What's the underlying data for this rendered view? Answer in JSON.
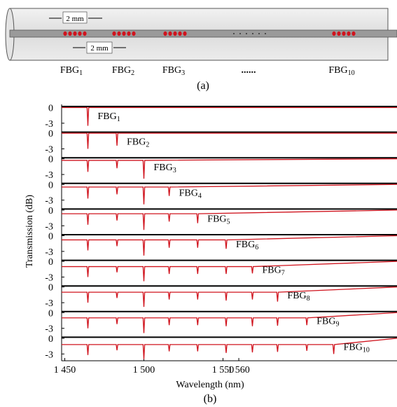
{
  "diagram": {
    "spacing_labels": [
      "2 mm",
      "2 mm"
    ],
    "gratings": [
      {
        "text": "FBG",
        "sub": "1"
      },
      {
        "text": "FBG",
        "sub": "2"
      },
      {
        "text": "FBG",
        "sub": "3"
      },
      {
        "text": "......"
      },
      {
        "text": "FBG",
        "sub": "10"
      }
    ],
    "label": "(a)"
  },
  "chart_data": {
    "type": "line",
    "xlabel": "Wavelength (nm)",
    "ylabel": "Transmission (dB)",
    "label": "(b)",
    "color": "#d0141e",
    "xlim": [
      1448,
      1660
    ],
    "xticks": [
      {
        "value": 1450,
        "label": "1 450"
      },
      {
        "value": 1500,
        "label": "1 500"
      },
      {
        "value": 1550,
        "label": "1 550"
      },
      {
        "value": 1560,
        "label": "1 560"
      }
    ],
    "ylim": [
      -4.3,
      0.6
    ],
    "yticks": [
      0,
      -3
    ],
    "panels": [
      {
        "annotation": {
          "text": "FBG",
          "sub": "1"
        },
        "x": [
          1448,
          1464.1,
          1464.6,
          1465.1,
          1660
        ],
        "values": [
          0,
          0,
          -3.5,
          0,
          0
        ]
      },
      {
        "annotation": {
          "text": "FBG",
          "sub": "2"
        },
        "x": [
          1448,
          1464.1,
          1464.6,
          1465.1,
          1482.5,
          1483,
          1483.5,
          1660
        ],
        "values": [
          0,
          0,
          -3.0,
          0,
          0,
          -2.4,
          0,
          0
        ]
      },
      {
        "annotation": {
          "text": "FBG",
          "sub": "3"
        },
        "x": [
          1448,
          1464.1,
          1464.6,
          1465.1,
          1482.5,
          1483,
          1483.5,
          1499.5,
          1500,
          1500.5,
          1660
        ],
        "values": [
          -0.3,
          -0.3,
          -2.5,
          -0.3,
          -0.3,
          -1.8,
          -0.3,
          -0.3,
          -3.8,
          -0.3,
          0
        ]
      },
      {
        "annotation": {
          "text": "FBG",
          "sub": "4"
        },
        "x": [
          1448,
          1464.1,
          1464.6,
          1465.1,
          1482.5,
          1483,
          1483.5,
          1499.5,
          1500,
          1500.5,
          1515.5,
          1516,
          1516.5,
          1660
        ],
        "values": [
          -0.5,
          -0.5,
          -2.7,
          -0.5,
          -0.5,
          -1.9,
          -0.5,
          -0.5,
          -3.8,
          -0.5,
          -0.5,
          -2.2,
          -0.5,
          0
        ]
      },
      {
        "annotation": {
          "text": "FBG",
          "sub": "5"
        },
        "x": [
          1448,
          1464.1,
          1464.6,
          1465.1,
          1482.5,
          1483,
          1483.5,
          1499.5,
          1500,
          1500.5,
          1515.5,
          1516,
          1516.5,
          1533.5,
          1534,
          1534.5,
          1660
        ],
        "values": [
          -0.7,
          -0.7,
          -2.8,
          -0.7,
          -0.7,
          -2.0,
          -0.7,
          -0.7,
          -3.8,
          -0.7,
          -0.7,
          -2.2,
          -0.7,
          -0.7,
          -2.5,
          -0.7,
          0
        ]
      },
      {
        "annotation": {
          "text": "FBG",
          "sub": "6"
        },
        "x": [
          1448,
          1464.1,
          1464.6,
          1465.1,
          1482.5,
          1483,
          1483.5,
          1499.5,
          1500,
          1500.5,
          1515.5,
          1516,
          1516.5,
          1533.5,
          1534,
          1534.5,
          1551.5,
          1552,
          1552.5,
          1660
        ],
        "values": [
          -0.8,
          -0.8,
          -2.8,
          -0.8,
          -0.8,
          -2.0,
          -0.8,
          -0.8,
          -3.8,
          -0.8,
          -0.8,
          -2.3,
          -0.8,
          -0.8,
          -2.3,
          -0.8,
          -0.8,
          -2.5,
          -0.8,
          0
        ]
      },
      {
        "annotation": {
          "text": "FBG",
          "sub": "7"
        },
        "x": [
          1448,
          1464.1,
          1464.6,
          1465.1,
          1482.5,
          1483,
          1483.5,
          1499.5,
          1500,
          1500.5,
          1515.5,
          1516,
          1516.5,
          1533.5,
          1534,
          1534.5,
          1551.5,
          1552,
          1552.5,
          1568.1,
          1568.6,
          1569.1,
          1660
        ],
        "values": [
          -1,
          -1,
          -3.0,
          -1,
          -1,
          -2.1,
          -1,
          -1,
          -3.8,
          -1,
          -1,
          -2.4,
          -1,
          -1,
          -2.4,
          -1,
          -1,
          -2.4,
          -1,
          -1,
          -2.3,
          -1,
          0
        ]
      },
      {
        "annotation": {
          "text": "FBG",
          "sub": "8"
        },
        "x": [
          1448,
          1464.1,
          1464.6,
          1465.1,
          1482.5,
          1483,
          1483.5,
          1499.5,
          1500,
          1500.5,
          1515.5,
          1516,
          1516.5,
          1533.5,
          1534,
          1534.5,
          1551.5,
          1552,
          1552.5,
          1568.1,
          1568.6,
          1569.1,
          1584,
          1584.5,
          1585,
          1660
        ],
        "values": [
          -1,
          -1,
          -3.0,
          -1,
          -1,
          -2.1,
          -1,
          -1,
          -3.8,
          -1,
          -1,
          -2.4,
          -1,
          -1,
          -2.4,
          -1,
          -1,
          -2.6,
          -1,
          -1,
          -2.4,
          -1,
          -1,
          -2.8,
          -1,
          0
        ]
      },
      {
        "annotation": {
          "text": "FBG",
          "sub": "9"
        },
        "x": [
          1448,
          1464.1,
          1464.6,
          1465.1,
          1482.5,
          1483,
          1483.5,
          1499.5,
          1500,
          1500.5,
          1515.5,
          1516,
          1516.5,
          1533.5,
          1534,
          1534.5,
          1551.5,
          1552,
          1552.5,
          1568.1,
          1568.6,
          1569.1,
          1584,
          1584.5,
          1585,
          1602.5,
          1603,
          1603.5,
          1660
        ],
        "values": [
          -1,
          -1,
          -3.0,
          -1,
          -1,
          -2.2,
          -1,
          -1,
          -3.9,
          -1,
          -1,
          -2.4,
          -1,
          -1,
          -2.4,
          -1,
          -1,
          -2.6,
          -1,
          -1,
          -2.6,
          -1,
          -1,
          -2.5,
          -1,
          -1,
          -2.4,
          -1,
          0
        ]
      },
      {
        "annotation": {
          "text": "FBG",
          "sub": "10"
        },
        "x": [
          1448,
          1464.1,
          1464.6,
          1465.1,
          1482.5,
          1483,
          1483.5,
          1499.5,
          1500,
          1500.5,
          1515.5,
          1516,
          1516.5,
          1533.5,
          1534,
          1534.5,
          1551.5,
          1552,
          1552.5,
          1568.1,
          1568.6,
          1569.1,
          1584,
          1584.5,
          1585,
          1602.5,
          1603,
          1603.5,
          1619.5,
          1620,
          1620.5,
          1660
        ],
        "values": [
          -1.2,
          -1.2,
          -3.2,
          -1.2,
          -1.2,
          -2.3,
          -1.2,
          -1.2,
          -4.0,
          -1.2,
          -1.2,
          -2.5,
          -1.2,
          -1.2,
          -2.5,
          -1.2,
          -1.2,
          -2.8,
          -1.2,
          -1.2,
          -2.7,
          -1.2,
          -1.2,
          -2.6,
          -1.2,
          -1.2,
          -2.4,
          -1.2,
          -1.2,
          -3.0,
          -1.2,
          0
        ]
      }
    ]
  }
}
